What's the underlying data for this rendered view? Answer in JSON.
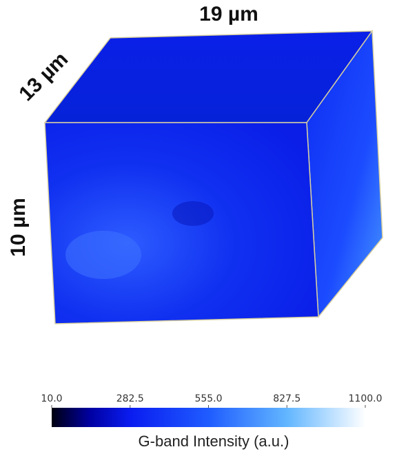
{
  "volume": {
    "width_label": "19 µm",
    "depth_label": "13 µm",
    "height_label": "10 µm"
  },
  "colorbar": {
    "range": [
      10,
      1100
    ],
    "ticks": [
      {
        "value": 10,
        "label": "10.0"
      },
      {
        "value": 282.5,
        "label": "282.5"
      },
      {
        "value": 555,
        "label": "555.0"
      },
      {
        "value": 827.5,
        "label": "827.5"
      },
      {
        "value": 1100,
        "label": "1100.0"
      }
    ],
    "label": "G-band Intensity (a.u.)"
  }
}
